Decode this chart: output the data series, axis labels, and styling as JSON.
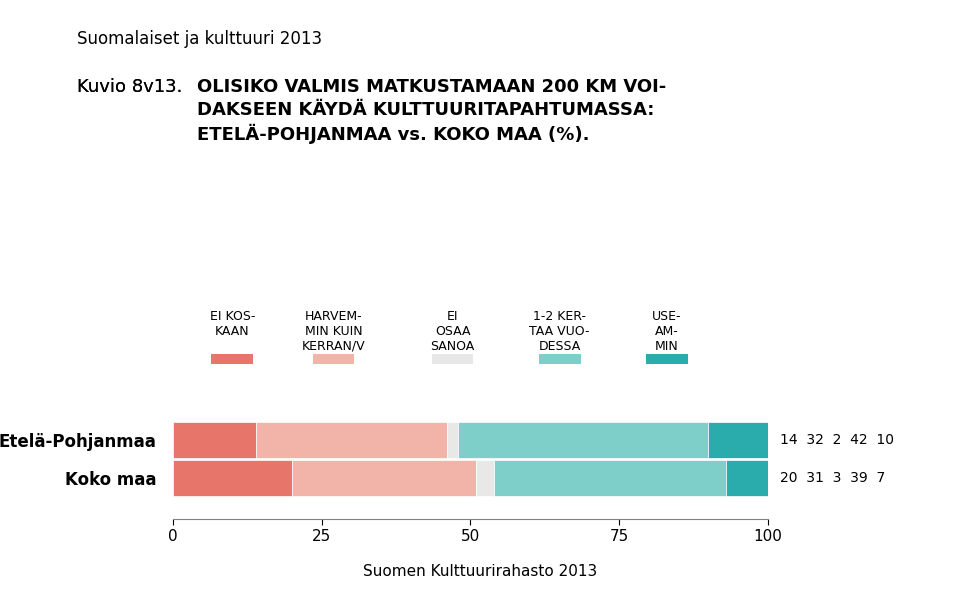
{
  "title_top": "Suomalaiset ja kulttuuri 2013",
  "kuvio_label": "Kuvio 8v13.",
  "title_main": "OLISIKO VALMIS MATKUSTAMAAN 200 KM VOI-\nDAKSEEN KÄYDÄ KULTTUURITAPAHTUMASSA:\nETELÄ-POHJANMAA vs. KOKO MAA (%).",
  "footer": "Suomen Kulttuurirahasto 2013",
  "categories": [
    "EI KOS-\nKAAN",
    "HARVEM-\nMIN KUIN\nKERRAN/V",
    "EI\nOSAA\nSANOA",
    "1-2 KER-\nTAA VUO-\nDESSA",
    "USE-\nAM-\nMIN"
  ],
  "colors": [
    "#e8756a",
    "#f2b3a8",
    "#e8e8e8",
    "#7ececa",
    "#2aacac"
  ],
  "rows": [
    "Etelä-Pohjanmaa",
    "Koko maa"
  ],
  "values": [
    [
      14,
      32,
      2,
      42,
      10
    ],
    [
      20,
      31,
      3,
      39,
      7
    ]
  ],
  "bg_color": "#ffffff",
  "bar_height": 0.35,
  "xlim": [
    0,
    100
  ],
  "xticks": [
    0,
    25,
    50,
    75,
    100
  ]
}
